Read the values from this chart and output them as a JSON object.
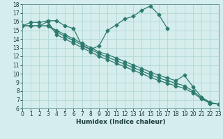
{
  "xlabel": "Humidex (Indice chaleur)",
  "xlim": [
    0,
    23
  ],
  "ylim": [
    6,
    18
  ],
  "xticks": [
    0,
    1,
    2,
    3,
    4,
    5,
    6,
    7,
    8,
    9,
    10,
    11,
    12,
    13,
    14,
    15,
    16,
    17,
    18,
    19,
    20,
    21,
    22,
    23
  ],
  "yticks": [
    6,
    7,
    8,
    9,
    10,
    11,
    12,
    13,
    14,
    15,
    16,
    17,
    18
  ],
  "bg_color": "#d5edec",
  "line_color": "#2d7a6e",
  "grid_color": "#b0d8d5",
  "lines": [
    {
      "x": [
        0,
        1,
        2,
        3,
        4,
        5,
        6,
        7,
        8,
        9,
        10,
        11,
        12,
        13,
        14,
        15,
        16,
        17,
        18,
        19,
        20,
        21,
        22,
        23
      ],
      "y": [
        15.5,
        15.9,
        15.9,
        16.1,
        16.1,
        15.5,
        15.2,
        13.2,
        12.8,
        13.2,
        15.0,
        15.6,
        16.3,
        16.6,
        17.3,
        17.8,
        16.8,
        15.2,
        null,
        null,
        null,
        null,
        null,
        null
      ]
    },
    {
      "x": [
        0,
        1,
        2,
        3,
        4,
        5,
        6,
        7,
        8,
        9,
        10,
        11,
        12,
        13,
        14,
        15,
        16,
        17,
        18,
        19,
        20,
        21,
        22,
        23
      ],
      "y": [
        15.5,
        15.5,
        15.5,
        15.5,
        15.0,
        14.5,
        14.0,
        13.5,
        13.0,
        12.5,
        12.2,
        11.8,
        11.4,
        11.0,
        10.6,
        10.2,
        9.8,
        9.5,
        9.2,
        9.8,
        8.5,
        7.3,
        6.7,
        6.5
      ]
    },
    {
      "x": [
        0,
        1,
        2,
        3,
        4,
        5,
        6,
        7,
        8,
        9,
        10,
        11,
        12,
        13,
        14,
        15,
        16,
        17,
        18,
        19,
        20,
        21,
        22,
        23
      ],
      "y": [
        15.5,
        15.5,
        15.5,
        15.5,
        14.8,
        14.3,
        13.8,
        13.3,
        12.8,
        12.3,
        11.9,
        11.5,
        11.1,
        10.7,
        10.3,
        9.9,
        9.5,
        9.2,
        8.9,
        8.6,
        8.0,
        7.2,
        6.6,
        6.5
      ]
    },
    {
      "x": [
        0,
        1,
        2,
        3,
        4,
        5,
        6,
        7,
        8,
        9,
        10,
        11,
        12,
        13,
        14,
        15,
        16,
        17,
        18,
        19,
        20,
        21,
        22,
        23
      ],
      "y": [
        15.5,
        15.5,
        15.5,
        16.0,
        14.5,
        14.0,
        13.5,
        13.0,
        12.5,
        12.0,
        11.6,
        11.2,
        10.8,
        10.4,
        10.0,
        9.6,
        9.2,
        8.9,
        8.6,
        8.3,
        7.8,
        7.1,
        6.6,
        6.5
      ]
    }
  ],
  "marker": "D",
  "markersize": 2.5,
  "linewidth": 0.9,
  "tick_fontsize": 5.5,
  "xlabel_fontsize": 6.5
}
